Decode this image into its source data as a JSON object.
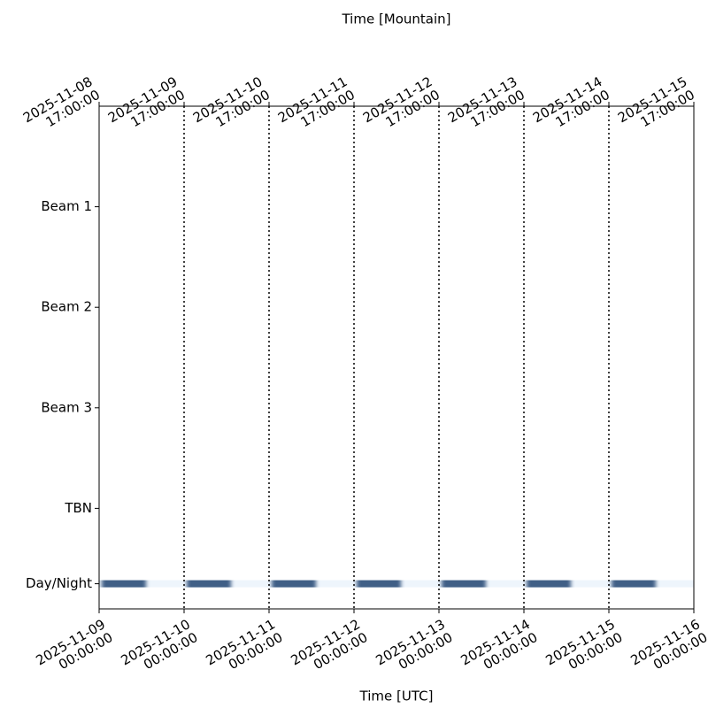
{
  "chart_data": {
    "type": "timeline",
    "xlabel": "Time [UTC]",
    "x2label": "Time [Mountain]",
    "xlim": [
      "2025-11-09T00:00:00Z",
      "2025-11-16T00:00:00Z"
    ],
    "xticks": [
      {
        "value": "2025-11-09T00:00:00Z",
        "label": "2025-11-09\n00:00:00"
      },
      {
        "value": "2025-11-10T00:00:00Z",
        "label": "2025-11-10\n00:00:00"
      },
      {
        "value": "2025-11-11T00:00:00Z",
        "label": "2025-11-11\n00:00:00"
      },
      {
        "value": "2025-11-12T00:00:00Z",
        "label": "2025-11-12\n00:00:00"
      },
      {
        "value": "2025-11-13T00:00:00Z",
        "label": "2025-11-13\n00:00:00"
      },
      {
        "value": "2025-11-14T00:00:00Z",
        "label": "2025-11-14\n00:00:00"
      },
      {
        "value": "2025-11-15T00:00:00Z",
        "label": "2025-11-15\n00:00:00"
      },
      {
        "value": "2025-11-16T00:00:00Z",
        "label": "2025-11-16\n00:00:00"
      }
    ],
    "x2ticks": [
      {
        "value": "2025-11-09T00:00:00Z",
        "label": "2025-11-08\n17:00:00"
      },
      {
        "value": "2025-11-10T00:00:00Z",
        "label": "2025-11-09\n17:00:00"
      },
      {
        "value": "2025-11-11T00:00:00Z",
        "label": "2025-11-10\n17:00:00"
      },
      {
        "value": "2025-11-12T00:00:00Z",
        "label": "2025-11-11\n17:00:00"
      },
      {
        "value": "2025-11-13T00:00:00Z",
        "label": "2025-11-12\n17:00:00"
      },
      {
        "value": "2025-11-14T00:00:00Z",
        "label": "2025-11-13\n17:00:00"
      },
      {
        "value": "2025-11-15T00:00:00Z",
        "label": "2025-11-14\n17:00:00"
      },
      {
        "value": "2025-11-16T00:00:00Z",
        "label": "2025-11-15\n17:00:00"
      }
    ],
    "ylim": [
      0,
      5
    ],
    "yticks": [
      {
        "value": 4,
        "label": "Beam 1"
      },
      {
        "value": 3,
        "label": "Beam 2"
      },
      {
        "value": 2,
        "label": "Beam 3"
      },
      {
        "value": 1,
        "label": "TBN"
      },
      {
        "value": 0.25,
        "label": "Day/Night"
      }
    ],
    "grid": true,
    "day_color": "#eef5fc",
    "night_color": "#3f5f86",
    "night": [
      [
        "2025-11-09T00:45:00Z",
        "2025-11-09T13:15:00Z"
      ],
      [
        "2025-11-10T00:45:00Z",
        "2025-11-10T13:15:00Z"
      ],
      [
        "2025-11-11T00:45:00Z",
        "2025-11-11T13:15:00Z"
      ],
      [
        "2025-11-12T00:45:00Z",
        "2025-11-12T13:15:00Z"
      ],
      [
        "2025-11-13T00:45:00Z",
        "2025-11-13T13:15:00Z"
      ],
      [
        "2025-11-14T00:45:00Z",
        "2025-11-14T13:15:00Z"
      ],
      [
        "2025-11-15T00:45:00Z",
        "2025-11-15T13:15:00Z"
      ]
    ]
  }
}
